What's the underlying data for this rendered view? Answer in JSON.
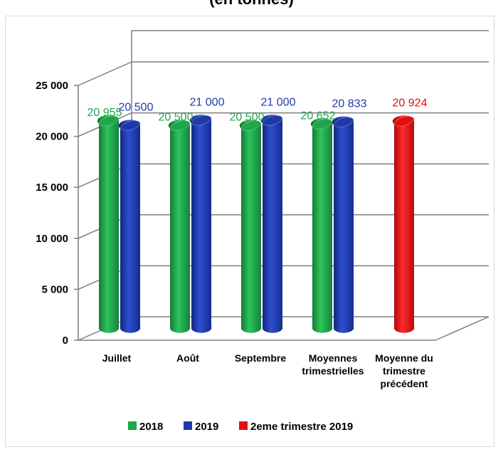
{
  "chart_data": {
    "type": "bar",
    "title": "(en tonnes)",
    "categories": [
      "Juillet",
      "Août",
      "Septembre",
      "Moyennes trimestrielles",
      "Moyenne du trimestre précédent"
    ],
    "category_lines": [
      [
        "Juillet"
      ],
      [
        "Août"
      ],
      [
        "Septembre"
      ],
      [
        "Moyennes",
        "trimestrielles"
      ],
      [
        "Moyenne du",
        "trimestre",
        "précédent"
      ]
    ],
    "series": [
      {
        "name": "2018",
        "color": "#1fa64a",
        "values": [
          20955,
          20500,
          20500,
          20652,
          null
        ]
      },
      {
        "name": "2019",
        "color": "#1f3aa8",
        "values": [
          20500,
          21000,
          21000,
          20833,
          null
        ]
      },
      {
        "name": "2eme trimestre 2019",
        "color": "#e01010",
        "values": [
          null,
          null,
          null,
          null,
          20924
        ]
      }
    ],
    "data_labels": [
      [
        "20 955",
        "20 500",
        "20 500",
        "20 652",
        null
      ],
      [
        "20 500",
        "21 000",
        "21 000",
        "20 833",
        null
      ],
      [
        null,
        null,
        null,
        null,
        "20 924"
      ]
    ],
    "y_ticks": [
      0,
      5000,
      10000,
      15000,
      20000,
      25000
    ],
    "y_tick_labels": [
      "0",
      "5 000",
      "10 000",
      "15 000",
      "20 000",
      "25 000"
    ],
    "ylim": [
      0,
      25000
    ],
    "grid": true,
    "legend_position": "bottom",
    "xlabel": "",
    "ylabel": ""
  }
}
